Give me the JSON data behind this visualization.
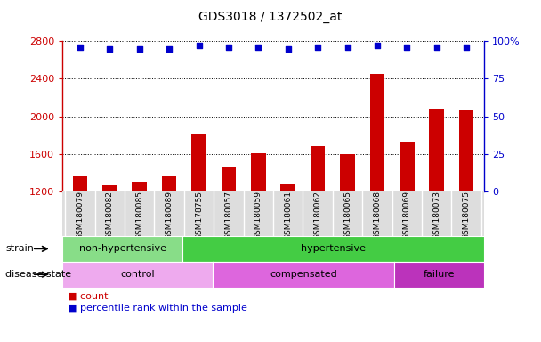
{
  "title": "GDS3018 / 1372502_at",
  "samples": [
    "GSM180079",
    "GSM180082",
    "GSM180085",
    "GSM180089",
    "GSM178755",
    "GSM180057",
    "GSM180059",
    "GSM180061",
    "GSM180062",
    "GSM180065",
    "GSM180068",
    "GSM180069",
    "GSM180073",
    "GSM180075"
  ],
  "counts": [
    1360,
    1270,
    1300,
    1360,
    1820,
    1470,
    1610,
    1280,
    1680,
    1600,
    2450,
    1730,
    2080,
    2060
  ],
  "percentile_ranks": [
    96,
    95,
    95,
    95,
    97,
    96,
    96,
    95,
    96,
    96,
    97,
    96,
    96,
    96
  ],
  "ylim_left": [
    1200,
    2800
  ],
  "ylim_right": [
    0,
    100
  ],
  "yticks_left": [
    1200,
    1600,
    2000,
    2400,
    2800
  ],
  "yticks_right": [
    0,
    25,
    50,
    75,
    100
  ],
  "bar_color": "#cc0000",
  "dot_color": "#0000cc",
  "strain_groups": [
    {
      "label": "non-hypertensive",
      "start": 0,
      "end": 4,
      "color": "#88dd88"
    },
    {
      "label": "hypertensive",
      "start": 4,
      "end": 14,
      "color": "#44cc44"
    }
  ],
  "disease_groups": [
    {
      "label": "control",
      "start": 0,
      "end": 5,
      "color": "#eeaaee"
    },
    {
      "label": "compensated",
      "start": 5,
      "end": 11,
      "color": "#dd66dd"
    },
    {
      "label": "failure",
      "start": 11,
      "end": 14,
      "color": "#bb33bb"
    }
  ],
  "legend_count_label": "count",
  "legend_pct_label": "percentile rank within the sample",
  "strain_label": "strain",
  "disease_label": "disease state",
  "background_color": "#ffffff",
  "xtick_bg_color": "#dddddd",
  "chart_bg_color": "#ffffff"
}
